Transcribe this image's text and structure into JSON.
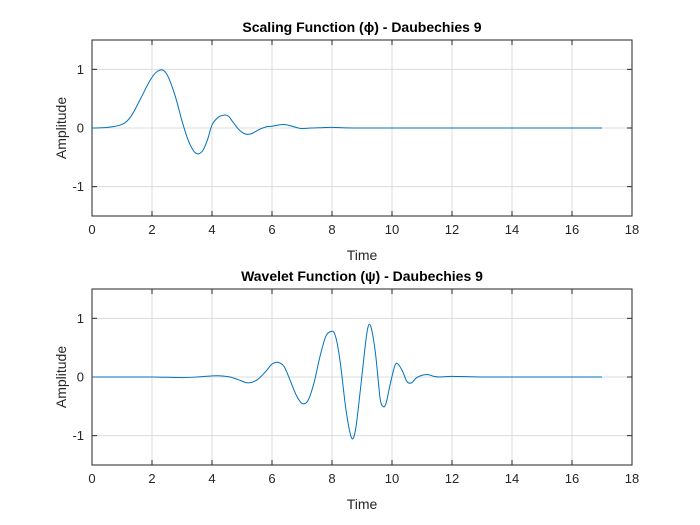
{
  "colors": {
    "line": "#0072BD",
    "grid": "#dcdcdc",
    "axes": "#262626"
  },
  "chart_data": [
    {
      "type": "line",
      "title": "Scaling Function (ϕ) - Daubechies 9",
      "xlabel": "Time",
      "ylabel": "Amplitude",
      "xlim": [
        0,
        18
      ],
      "ylim": [
        -1.5,
        1.5
      ],
      "xticks": [
        0,
        2,
        4,
        6,
        8,
        10,
        12,
        14,
        16,
        18
      ],
      "yticks": [
        -1,
        0,
        1
      ],
      "grid": true,
      "series": [
        {
          "x": [
            0,
            0.5,
            1.0,
            1.3,
            1.6,
            1.9,
            2.1,
            2.3,
            2.45,
            2.6,
            2.8,
            3.0,
            3.2,
            3.4,
            3.55,
            3.7,
            3.85,
            4.0,
            4.2,
            4.4,
            4.55,
            4.7,
            4.9,
            5.1,
            5.3,
            5.45,
            5.6,
            5.8,
            6.0,
            6.2,
            6.4,
            6.6,
            6.8,
            7.0,
            7.3,
            7.6,
            8.0,
            8.5,
            9.0,
            10.0,
            12.0,
            14.0,
            16.0,
            17.0
          ],
          "y": [
            0,
            0.01,
            0.06,
            0.2,
            0.48,
            0.78,
            0.93,
            0.99,
            0.95,
            0.8,
            0.5,
            0.12,
            -0.2,
            -0.4,
            -0.44,
            -0.38,
            -0.2,
            0.05,
            0.18,
            0.22,
            0.2,
            0.1,
            -0.03,
            -0.1,
            -0.1,
            -0.06,
            -0.02,
            0.02,
            0.03,
            0.05,
            0.06,
            0.04,
            0.01,
            -0.01,
            0.0,
            0.005,
            0.01,
            0.002,
            0.0,
            0.0,
            0.0,
            0.0,
            0.0,
            0.0
          ]
        }
      ]
    },
    {
      "type": "line",
      "title": "Wavelet Function (ψ) - Daubechies 9",
      "xlabel": "Time",
      "ylabel": "Amplitude",
      "xlim": [
        0,
        18
      ],
      "ylim": [
        -1.5,
        1.5
      ],
      "xticks": [
        0,
        2,
        4,
        6,
        8,
        10,
        12,
        14,
        16,
        18
      ],
      "yticks": [
        -1,
        0,
        1
      ],
      "grid": true,
      "series": [
        {
          "x": [
            0,
            1.0,
            2.0,
            3.0,
            3.5,
            4.0,
            4.3,
            4.6,
            4.9,
            5.2,
            5.5,
            5.8,
            6.0,
            6.2,
            6.4,
            6.6,
            6.8,
            7.0,
            7.2,
            7.4,
            7.6,
            7.8,
            8.0,
            8.1,
            8.2,
            8.3,
            8.45,
            8.6,
            8.7,
            8.8,
            8.95,
            9.1,
            9.2,
            9.3,
            9.45,
            9.6,
            9.7,
            9.8,
            9.95,
            10.1,
            10.2,
            10.35,
            10.5,
            10.65,
            10.8,
            11.0,
            11.2,
            11.4,
            11.6,
            12.0,
            13.0,
            14.0,
            16.0,
            17.0
          ],
          "y": [
            0,
            0.0,
            0.0,
            -0.01,
            0.0,
            0.02,
            0.02,
            0.0,
            -0.05,
            -0.1,
            -0.05,
            0.1,
            0.22,
            0.25,
            0.18,
            -0.05,
            -0.3,
            -0.45,
            -0.4,
            -0.1,
            0.35,
            0.7,
            0.78,
            0.72,
            0.5,
            0.15,
            -0.5,
            -0.95,
            -1.05,
            -0.85,
            -0.2,
            0.5,
            0.85,
            0.85,
            0.4,
            -0.35,
            -0.5,
            -0.45,
            -0.1,
            0.2,
            0.22,
            0.1,
            -0.08,
            -0.1,
            -0.02,
            0.03,
            0.04,
            0.01,
            0.0,
            0.01,
            0.0,
            0.0,
            0.0,
            0.0
          ]
        }
      ]
    }
  ]
}
